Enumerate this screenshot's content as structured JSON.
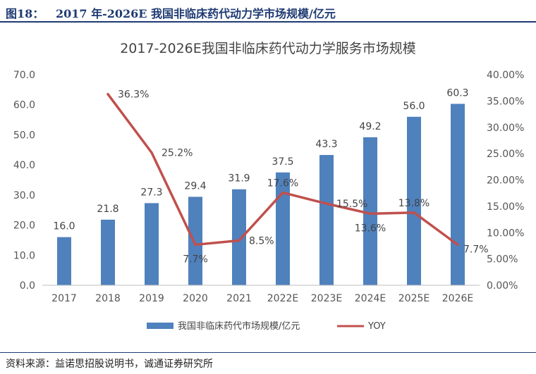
{
  "figure": {
    "label": "图18：",
    "title": "2017 年-2026E 我国非临床药代动力学市场规模/亿元",
    "source": "资料来源：益诺思招股说明书，诚通证券研究所"
  },
  "colors": {
    "bar": "#4f81bd",
    "line": "#c0504d",
    "header": "#1f3b73"
  },
  "chart_data": {
    "type": "bar",
    "title": "2017-2026E我国非临床药代动力学服务市场规模",
    "categories": [
      "2017",
      "2018",
      "2019",
      "2020",
      "2021",
      "2022E",
      "2023E",
      "2024E",
      "2025E",
      "2026E"
    ],
    "ylim": [
      0,
      70
    ],
    "y_ticks": [
      "0.0",
      "10.0",
      "20.0",
      "30.0",
      "40.0",
      "50.0",
      "60.0",
      "70.0"
    ],
    "y2lim": [
      0,
      0.4
    ],
    "y2_ticks": [
      "0.00%",
      "5.00%",
      "10.00%",
      "15.00%",
      "20.00%",
      "25.00%",
      "30.00%",
      "35.00%",
      "40.00%"
    ],
    "grid": false,
    "legend_position": "bottom",
    "series": [
      {
        "name": "我国非临床药代市场规模/亿元",
        "type": "bar",
        "axis": "left",
        "values": [
          16.0,
          21.8,
          27.3,
          29.4,
          31.9,
          37.5,
          43.3,
          49.2,
          56.0,
          60.3
        ],
        "labels": [
          "16.0",
          "21.8",
          "27.3",
          "29.4",
          "31.9",
          "37.5",
          "43.3",
          "49.2",
          "56.0",
          "60.3"
        ]
      },
      {
        "name": "YOY",
        "type": "line",
        "axis": "right",
        "values": [
          null,
          0.363,
          0.252,
          0.077,
          0.085,
          0.176,
          0.155,
          0.136,
          0.138,
          0.077
        ],
        "labels": [
          "",
          "36.3%",
          "25.2%",
          "7.7%",
          "8.5%",
          "17.6%",
          "15.5%",
          "13.6%",
          "13.8%",
          "7.7%"
        ]
      }
    ]
  }
}
